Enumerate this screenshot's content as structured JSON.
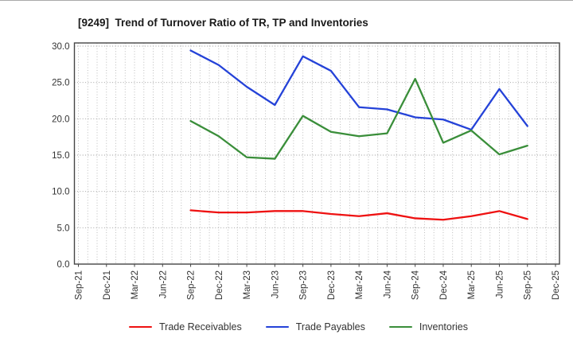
{
  "title": "[9249]  Trend of Turnover Ratio of TR, TP and Inventories",
  "chart_data": {
    "type": "line",
    "title": "[9249]  Trend of Turnover Ratio of TR, TP and Inventories",
    "xlabel": "",
    "ylabel": "",
    "ylim": [
      0,
      30
    ],
    "grid": true,
    "legend_position": "bottom",
    "x_ticks": [
      "Sep-21",
      "Dec-21",
      "Mar-22",
      "Jun-22",
      "Sep-22",
      "Dec-22",
      "Mar-23",
      "Jun-23",
      "Sep-23",
      "Dec-23",
      "Mar-24",
      "Jun-24",
      "Sep-24",
      "Dec-24",
      "Mar-25",
      "Jun-25",
      "Sep-25",
      "Dec-25"
    ],
    "y_ticks": [
      "0.0",
      "5.0",
      "10.0",
      "15.0",
      "20.0",
      "25.0",
      "30.0"
    ],
    "data_start_tick": "Sep-22",
    "categories": [
      "Sep-22",
      "Dec-22",
      "Mar-23",
      "Jun-23",
      "Sep-23",
      "Dec-23",
      "Mar-24",
      "Jun-24",
      "Sep-24",
      "Dec-24",
      "Mar-25",
      "Jun-25",
      "Sep-25"
    ],
    "series": [
      {
        "name": "Trade Receivables",
        "color": "#ee1111",
        "values": [
          7.4,
          7.1,
          7.1,
          7.3,
          7.3,
          6.9,
          6.6,
          7.0,
          6.3,
          6.1,
          6.6,
          7.3,
          6.2
        ]
      },
      {
        "name": "Trade Payables",
        "color": "#2442d8",
        "values": [
          29.4,
          27.4,
          24.4,
          21.9,
          28.6,
          26.6,
          21.6,
          21.3,
          20.2,
          19.9,
          18.5,
          24.1,
          19.0
        ]
      },
      {
        "name": "Inventories",
        "color": "#3a8e3a",
        "values": [
          19.7,
          17.6,
          14.7,
          14.5,
          20.4,
          18.2,
          17.6,
          18.0,
          25.5,
          16.7,
          18.4,
          15.1,
          16.3
        ]
      }
    ]
  }
}
